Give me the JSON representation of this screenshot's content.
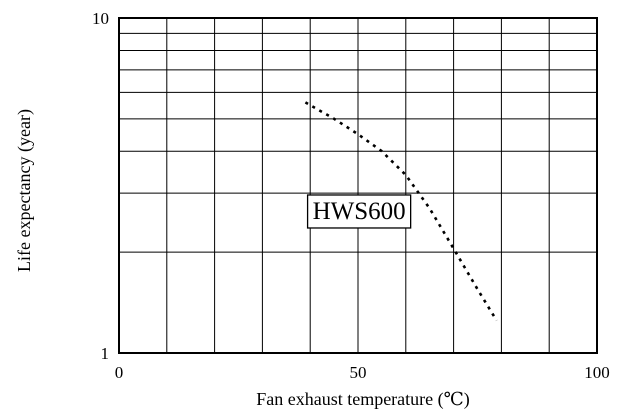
{
  "chart_data": {
    "type": "line",
    "title": "",
    "xlabel": "Fan exhaust temperature (℃)",
    "ylabel": "Life expectancy (year)",
    "xlim": [
      0,
      100
    ],
    "ylim": [
      1,
      10
    ],
    "y_scale": "log",
    "grid": true,
    "x_ticks": [
      {
        "value": 0,
        "label": "0"
      },
      {
        "value": 50,
        "label": "50"
      },
      {
        "value": 100,
        "label": "100"
      }
    ],
    "y_ticks": [
      {
        "value": 1,
        "label": "1"
      },
      {
        "value": 10,
        "label": "10"
      }
    ],
    "series": [
      {
        "name": "HWS600",
        "line_style": "dotted",
        "color": "#000000",
        "x": [
          39,
          45,
          50,
          55,
          60,
          65,
          70,
          75,
          79
        ],
        "y": [
          5.6,
          5.0,
          4.5,
          4.0,
          3.4,
          2.7,
          2.05,
          1.55,
          1.25
        ]
      }
    ],
    "annotations": [
      {
        "text": "HWS600",
        "x": 40.5,
        "y": 2.6,
        "boxed": true
      }
    ]
  }
}
